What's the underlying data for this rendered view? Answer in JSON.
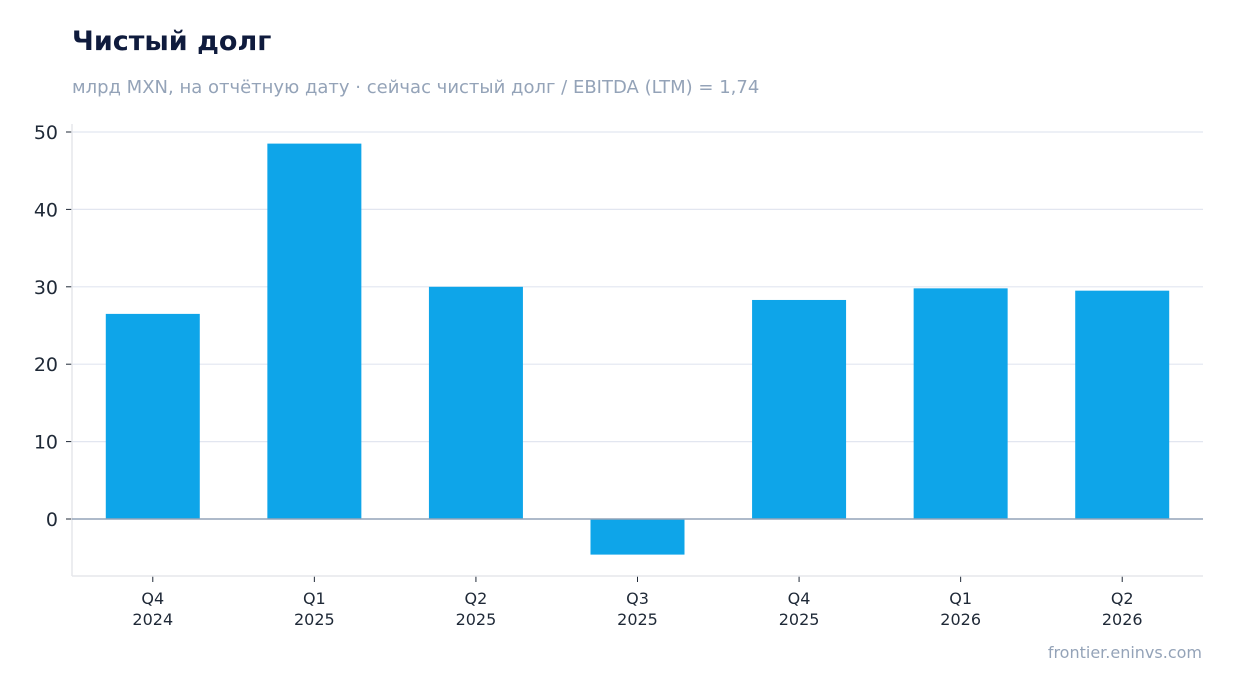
{
  "header": {
    "title": "Чистый долг",
    "subtitle": "млрд MXN, на отчётную дату · сейчас чистый долг / EBITDA (LTM) = 1,74"
  },
  "footer": {
    "source": "frontier.eninvs.com"
  },
  "chart_data": {
    "type": "bar",
    "title": "Чистый долг",
    "subtitle": "млрд MXN, на отчётную дату · сейчас чистый долг / EBITDA (LTM) = 1,74",
    "categories": [
      [
        "Q4",
        "2024"
      ],
      [
        "Q1",
        "2025"
      ],
      [
        "Q2",
        "2025"
      ],
      [
        "Q3",
        "2025"
      ],
      [
        "Q4",
        "2025"
      ],
      [
        "Q1",
        "2026"
      ],
      [
        "Q2",
        "2026"
      ]
    ],
    "values": [
      26.5,
      48.5,
      30.0,
      -4.6,
      28.3,
      29.8,
      29.5
    ],
    "yticks": [
      0,
      10,
      20,
      30,
      40,
      50
    ],
    "ylim": [
      -7.4,
      51.2
    ],
    "xlabel": "",
    "ylabel": "",
    "grid": true,
    "legend": "none",
    "colors": {
      "bar": "#0ea5e9",
      "grid": "#e2e6f0",
      "zero_line": "#94a3b8",
      "axis": "#e5e7eb"
    }
  }
}
